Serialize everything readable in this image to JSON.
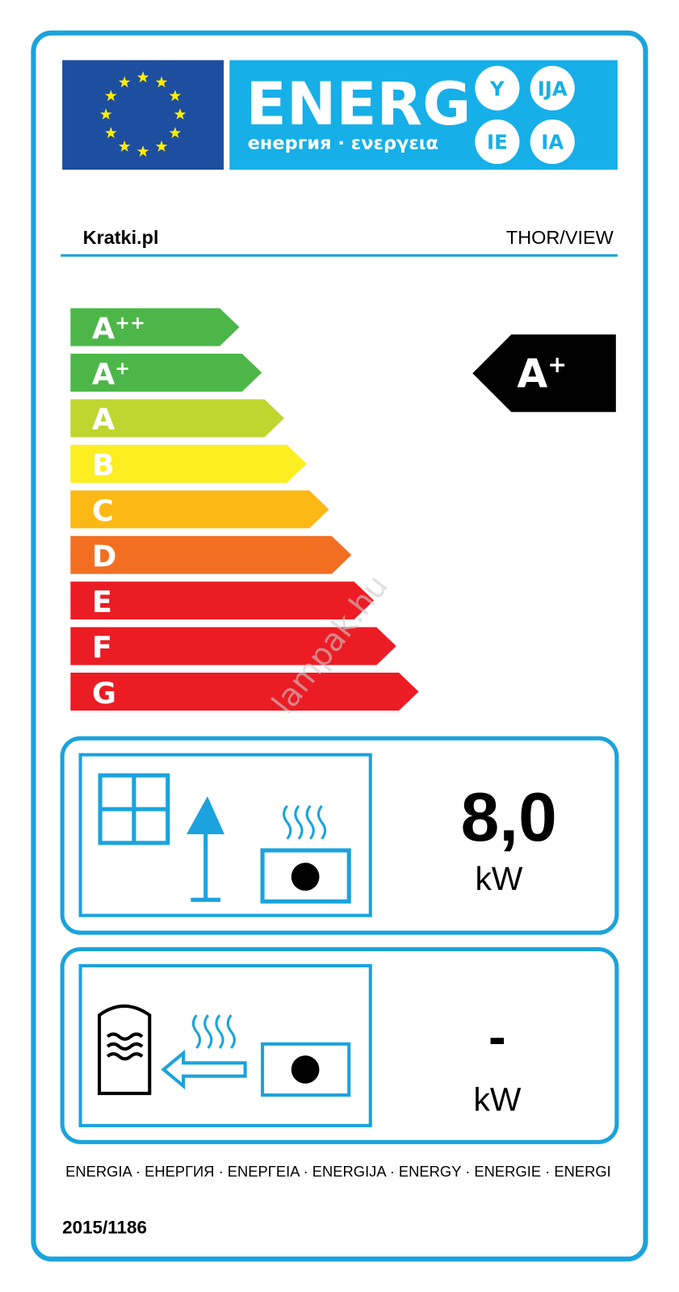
{
  "header": {
    "title": "ENERG",
    "subtitle": "енергия · ενεργεια",
    "suffixes": [
      "Y",
      "IJA",
      "IE",
      "IA"
    ]
  },
  "supplier": "Kratki.pl",
  "model": "THOR/VIEW",
  "classes": [
    {
      "letter": "A",
      "sup": "++",
      "color": "#4cb748"
    },
    {
      "letter": "A",
      "sup": "+",
      "color": "#4cb748"
    },
    {
      "letter": "A",
      "color": "#bed630"
    },
    {
      "letter": "B",
      "color": "#fcee21"
    },
    {
      "letter": "C",
      "color": "#fcb814"
    },
    {
      "letter": "D",
      "color": "#f26f22"
    },
    {
      "letter": "E",
      "color": "#ec1c24"
    },
    {
      "letter": "F",
      "color": "#ec1c24"
    },
    {
      "letter": "G",
      "color": "#ec1c24"
    }
  ],
  "rating": {
    "letter": "A",
    "sup": "+"
  },
  "direct_heat_output": {
    "value": "8,0",
    "unit": "kW"
  },
  "indirect_heat_output": {
    "value": "-",
    "unit": "kW"
  },
  "footer": {
    "languages": "ENERGIA · ЕНЕРГИЯ · ΕΝΕΡΓΕΙΑ · ENERGIJA · ENERGY · ENERGIE · ENERGI",
    "regulation": "2015/1186"
  },
  "watermark": "lampak.hu"
}
